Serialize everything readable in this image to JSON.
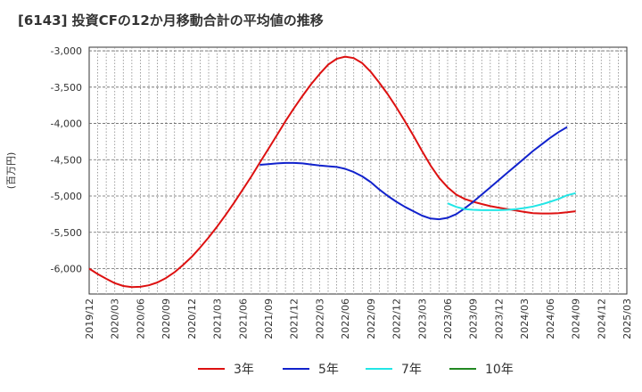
{
  "chart_data": {
    "type": "line",
    "title": "[6143]  投資CFの12か月移動合計の平均値の推移",
    "ylabel": "(百万円)",
    "ylim": [
      -6350,
      -2950
    ],
    "yticks": [
      -6000,
      -5500,
      -5000,
      -4500,
      -4000,
      -3500,
      -3000
    ],
    "ytick_labels": [
      "-6,000",
      "-5,500",
      "-5,000",
      "-4,500",
      "-4,000",
      "-3,500",
      "-3,000"
    ],
    "xlim": [
      "2019-12",
      "2025-03"
    ],
    "xtick_labels": [
      "2019/12",
      "2020/03",
      "2020/06",
      "2020/09",
      "2020/12",
      "2021/03",
      "2021/06",
      "2021/09",
      "2021/12",
      "2022/03",
      "2022/06",
      "2022/09",
      "2022/12",
      "2023/03",
      "2023/06",
      "2023/09",
      "2023/12",
      "2024/03",
      "2024/06",
      "2024/09",
      "2024/12",
      "2025/03"
    ],
    "grid": true,
    "legend_position": "bottom",
    "series": [
      {
        "name": "3年",
        "color": "#dd1111",
        "points": [
          [
            "2019-12",
            -6000
          ],
          [
            "2020-01",
            -6075
          ],
          [
            "2020-02",
            -6140
          ],
          [
            "2020-03",
            -6200
          ],
          [
            "2020-04",
            -6240
          ],
          [
            "2020-05",
            -6255
          ],
          [
            "2020-06",
            -6250
          ],
          [
            "2020-07",
            -6230
          ],
          [
            "2020-08",
            -6190
          ],
          [
            "2020-09",
            -6130
          ],
          [
            "2020-10",
            -6050
          ],
          [
            "2020-11",
            -5950
          ],
          [
            "2020-12",
            -5840
          ],
          [
            "2021-01",
            -5710
          ],
          [
            "2021-02",
            -5570
          ],
          [
            "2021-03",
            -5420
          ],
          [
            "2021-04",
            -5260
          ],
          [
            "2021-05",
            -5090
          ],
          [
            "2021-06",
            -4910
          ],
          [
            "2021-07",
            -4730
          ],
          [
            "2021-08",
            -4540
          ],
          [
            "2021-09",
            -4350
          ],
          [
            "2021-10",
            -4160
          ],
          [
            "2021-11",
            -3970
          ],
          [
            "2021-12",
            -3790
          ],
          [
            "2022-01",
            -3620
          ],
          [
            "2022-02",
            -3460
          ],
          [
            "2022-03",
            -3320
          ],
          [
            "2022-04",
            -3190
          ],
          [
            "2022-05",
            -3110
          ],
          [
            "2022-06",
            -3080
          ],
          [
            "2022-07",
            -3100
          ],
          [
            "2022-08",
            -3170
          ],
          [
            "2022-09",
            -3290
          ],
          [
            "2022-10",
            -3440
          ],
          [
            "2022-11",
            -3600
          ],
          [
            "2022-12",
            -3780
          ],
          [
            "2023-01",
            -3970
          ],
          [
            "2023-02",
            -4170
          ],
          [
            "2023-03",
            -4380
          ],
          [
            "2023-04",
            -4580
          ],
          [
            "2023-05",
            -4750
          ],
          [
            "2023-06",
            -4880
          ],
          [
            "2023-07",
            -4980
          ],
          [
            "2023-08",
            -5040
          ],
          [
            "2023-09",
            -5080
          ],
          [
            "2023-10",
            -5110
          ],
          [
            "2023-11",
            -5140
          ],
          [
            "2023-12",
            -5160
          ],
          [
            "2024-01",
            -5180
          ],
          [
            "2024-02",
            -5200
          ],
          [
            "2024-03",
            -5220
          ],
          [
            "2024-04",
            -5235
          ],
          [
            "2024-05",
            -5240
          ],
          [
            "2024-06",
            -5240
          ],
          [
            "2024-07",
            -5235
          ],
          [
            "2024-08",
            -5225
          ],
          [
            "2024-09",
            -5210
          ]
        ]
      },
      {
        "name": "5年",
        "color": "#1122cc",
        "points": [
          [
            "2021-08",
            -4570
          ],
          [
            "2021-09",
            -4560
          ],
          [
            "2021-10",
            -4550
          ],
          [
            "2021-11",
            -4545
          ],
          [
            "2021-12",
            -4545
          ],
          [
            "2022-01",
            -4550
          ],
          [
            "2022-02",
            -4565
          ],
          [
            "2022-03",
            -4580
          ],
          [
            "2022-04",
            -4590
          ],
          [
            "2022-05",
            -4600
          ],
          [
            "2022-06",
            -4625
          ],
          [
            "2022-07",
            -4670
          ],
          [
            "2022-08",
            -4730
          ],
          [
            "2022-09",
            -4810
          ],
          [
            "2022-10",
            -4910
          ],
          [
            "2022-11",
            -5000
          ],
          [
            "2022-12",
            -5080
          ],
          [
            "2023-01",
            -5150
          ],
          [
            "2023-02",
            -5210
          ],
          [
            "2023-03",
            -5270
          ],
          [
            "2023-04",
            -5310
          ],
          [
            "2023-05",
            -5320
          ],
          [
            "2023-06",
            -5300
          ],
          [
            "2023-07",
            -5250
          ],
          [
            "2023-08",
            -5170
          ],
          [
            "2023-09",
            -5080
          ],
          [
            "2023-10",
            -4980
          ],
          [
            "2023-11",
            -4880
          ],
          [
            "2023-12",
            -4780
          ],
          [
            "2024-01",
            -4680
          ],
          [
            "2024-02",
            -4580
          ],
          [
            "2024-03",
            -4480
          ],
          [
            "2024-04",
            -4380
          ],
          [
            "2024-05",
            -4290
          ],
          [
            "2024-06",
            -4200
          ],
          [
            "2024-07",
            -4120
          ],
          [
            "2024-08",
            -4050
          ]
        ]
      },
      {
        "name": "7年",
        "color": "#22e6e6",
        "points": [
          [
            "2023-06",
            -5100
          ],
          [
            "2023-07",
            -5150
          ],
          [
            "2023-08",
            -5180
          ],
          [
            "2023-09",
            -5190
          ],
          [
            "2023-10",
            -5195
          ],
          [
            "2023-11",
            -5195
          ],
          [
            "2023-12",
            -5195
          ],
          [
            "2024-01",
            -5190
          ],
          [
            "2024-02",
            -5180
          ],
          [
            "2024-03",
            -5165
          ],
          [
            "2024-04",
            -5145
          ],
          [
            "2024-05",
            -5115
          ],
          [
            "2024-06",
            -5080
          ],
          [
            "2024-07",
            -5040
          ],
          [
            "2024-08",
            -4990
          ],
          [
            "2024-09",
            -4960
          ]
        ]
      },
      {
        "name": "10年",
        "color": "#228822",
        "points": []
      }
    ]
  }
}
